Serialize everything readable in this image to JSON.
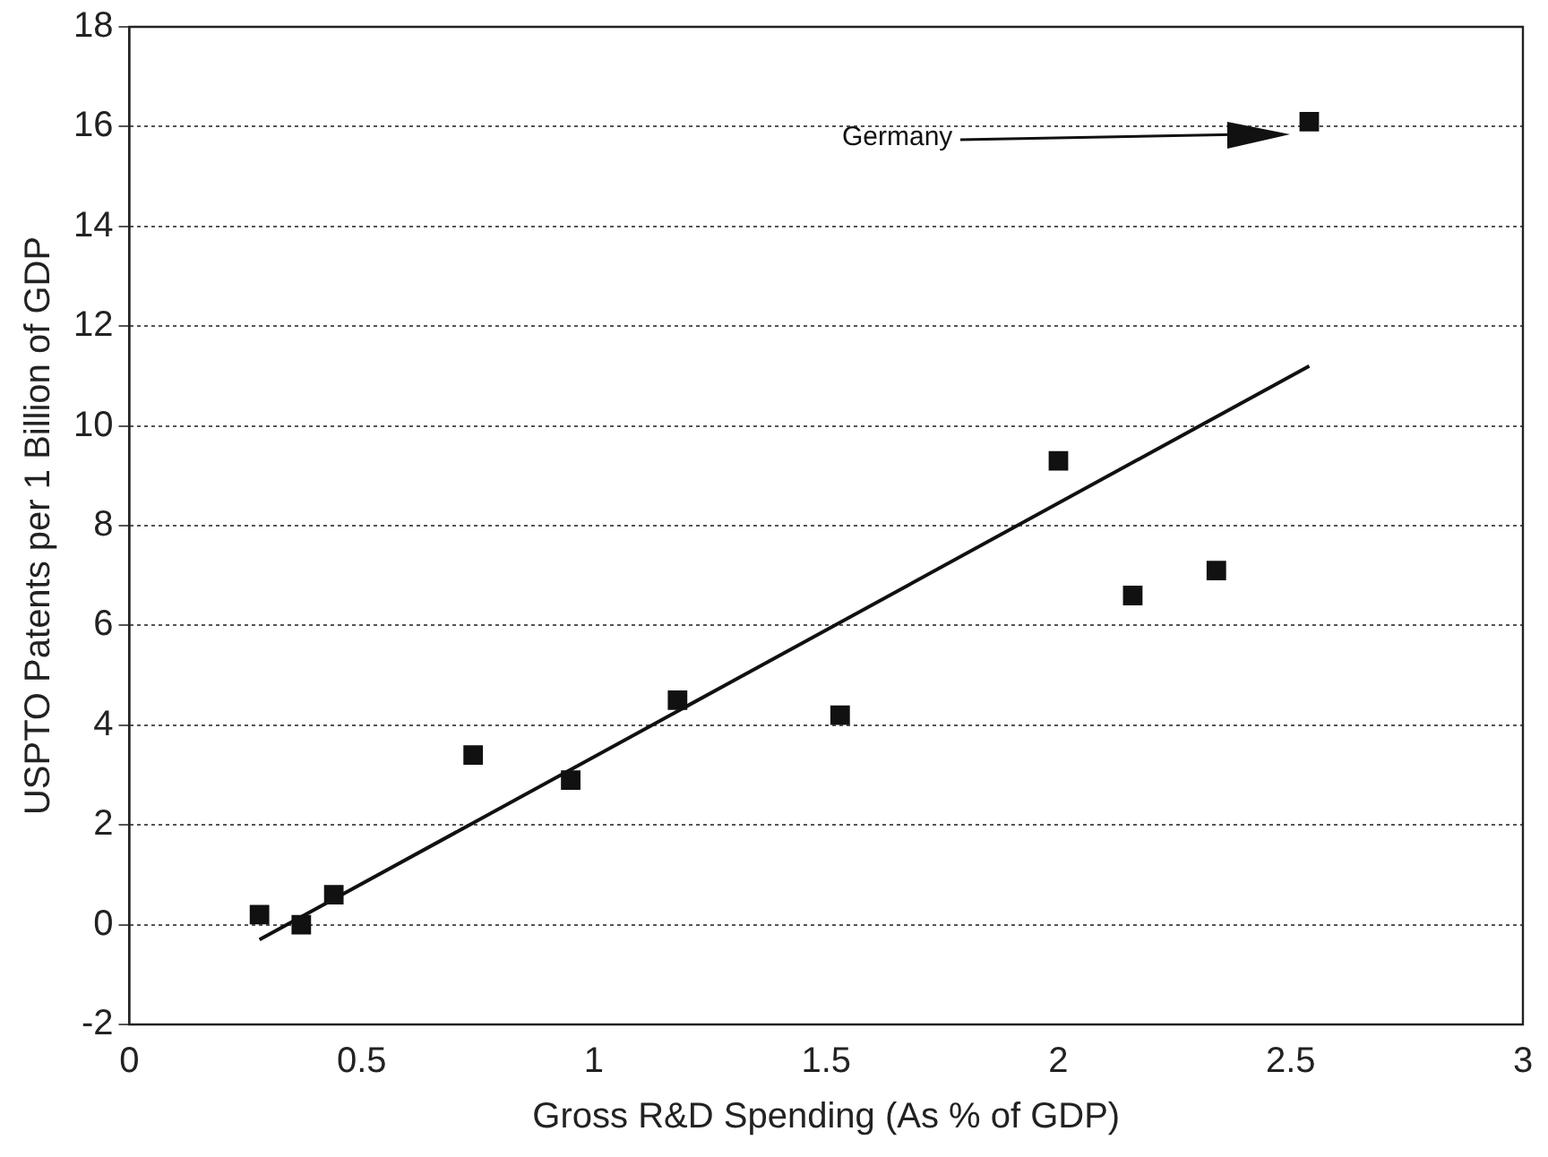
{
  "chart_data": {
    "type": "scatter",
    "xlabel": "Gross R&D Spending (As % of GDP)",
    "ylabel": "USPTO Patents per 1 Billion of GDP",
    "xlim": [
      0,
      3
    ],
    "xticks": [
      0,
      0.5,
      1,
      1.5,
      2,
      2.5,
      3
    ],
    "ylim": [
      -2,
      18
    ],
    "yticks": [
      -2,
      0,
      2,
      4,
      6,
      8,
      10,
      12,
      14,
      16,
      18
    ],
    "grid": "y",
    "legend": false,
    "marker": "square",
    "series": [
      {
        "color": "#111111",
        "x": [
          0.28,
          0.37,
          0.44,
          0.74,
          0.95,
          1.18,
          1.53,
          2.0,
          2.16,
          2.34,
          2.54
        ],
        "values": [
          0.2,
          0.0,
          0.6,
          3.4,
          2.9,
          4.5,
          4.2,
          9.3,
          6.6,
          7.1,
          16.1
        ]
      },
      {
        "type": "line",
        "color": "#111111",
        "x": [
          0.28,
          2.54
        ],
        "values": [
          -0.3,
          11.2
        ],
        "marker": "none",
        "line_style": "solid"
      }
    ],
    "annotations": [
      "Germany"
    ]
  }
}
